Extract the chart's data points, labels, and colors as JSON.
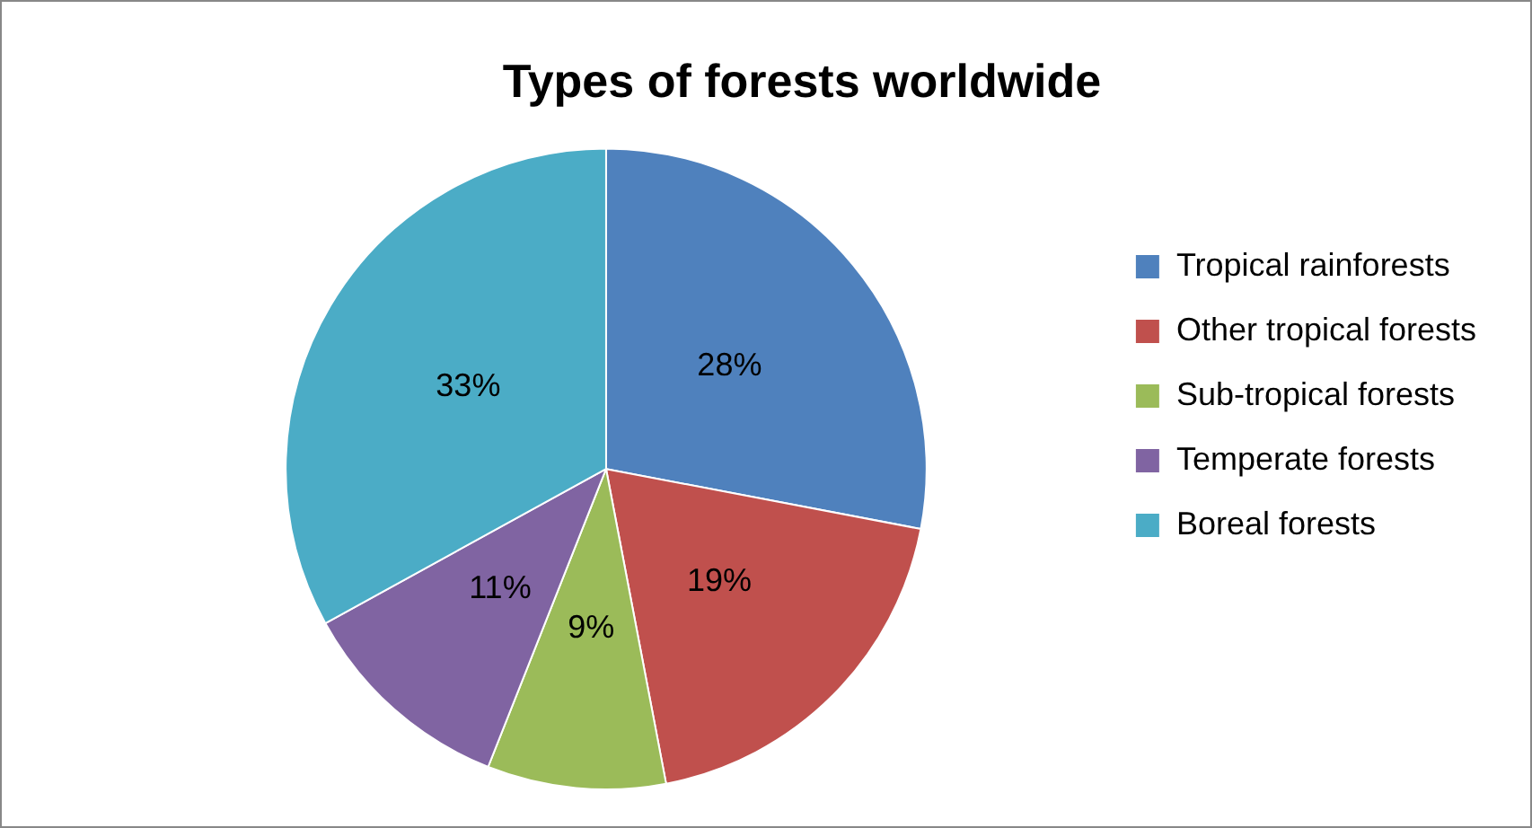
{
  "chart_data": {
    "type": "pie",
    "title": "Types of forests worldwide",
    "categories": [
      "Tropical rainforests",
      "Other tropical forests",
      "Sub-tropical forests",
      "Temperate forests",
      "Boreal forests"
    ],
    "values": [
      28,
      19,
      9,
      11,
      33
    ],
    "colors": [
      "#4f81bd",
      "#c0504d",
      "#9bbb59",
      "#8064a2",
      "#4bacc6"
    ],
    "value_labels": [
      "28%",
      "19%",
      "9%",
      "11%",
      "33%"
    ],
    "legend": "right"
  }
}
